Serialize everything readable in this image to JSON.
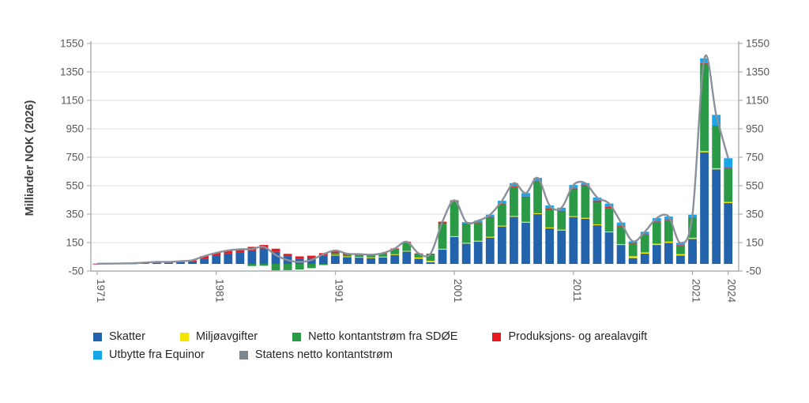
{
  "axis_title": "Milliarder NOK (2026)",
  "colors": {
    "skatter": "#2363ab",
    "miljoavgifter": "#f5e400",
    "sdoe": "#2b9a47",
    "produksjonsavgift": "#e81920",
    "equinor": "#18a6e8",
    "total_line": "#8a919b",
    "legend_line_swatch": "#7d868f",
    "grid": "#dcdcdc",
    "axis": "#9aa0a5",
    "tick_text": "#595959"
  },
  "legend": {
    "rows": [
      [
        {
          "id": "skatter",
          "label": "Skatter"
        },
        {
          "id": "miljoavgifter",
          "label": "Miljøavgifter"
        },
        {
          "id": "sdoe",
          "label": "Netto kontantstrøm fra SDØE"
        },
        {
          "id": "produksjonsavgift",
          "label": "Produksjons- og arealavgift"
        }
      ],
      [
        {
          "id": "equinor",
          "label": "Utbytte fra Equinor"
        },
        {
          "id": "total_line",
          "label": "Statens netto kontantstrøm"
        }
      ]
    ]
  },
  "chart_data": {
    "type": "bar",
    "subtype": "stacked-bar-with-line",
    "title": "",
    "xlabel": "",
    "ylabel": "Milliarder NOK (2026)",
    "ylim": [
      -50,
      1550
    ],
    "y_ticks": [
      -50,
      150,
      350,
      550,
      750,
      950,
      1150,
      1350,
      1550
    ],
    "x_tick_labels": [
      1971,
      1981,
      1991,
      2001,
      2011,
      2021,
      2024
    ],
    "grid": "horizontal",
    "legend_position": "bottom",
    "years": [
      1971,
      1972,
      1973,
      1974,
      1975,
      1976,
      1977,
      1978,
      1979,
      1980,
      1981,
      1982,
      1983,
      1984,
      1985,
      1986,
      1987,
      1988,
      1989,
      1990,
      1991,
      1992,
      1993,
      1994,
      1995,
      1996,
      1997,
      1998,
      1999,
      2000,
      2001,
      2002,
      2003,
      2004,
      2005,
      2006,
      2007,
      2008,
      2009,
      2010,
      2011,
      2012,
      2013,
      2014,
      2015,
      2016,
      2017,
      2018,
      2019,
      2020,
      2021,
      2022,
      2023,
      2024
    ],
    "series": [
      {
        "id": "skatter",
        "name": "Skatter",
        "values": [
          0.5,
          1,
          1.5,
          2.5,
          5,
          8,
          8,
          12,
          17,
          38,
          58,
          73,
          78,
          95,
          108,
          85,
          55,
          38,
          41,
          60,
          59,
          48,
          44,
          41,
          46,
          63,
          87,
          37,
          12,
          100,
          189,
          143,
          157,
          185,
          263,
          331,
          290,
          350,
          250,
          235,
          330,
          318,
          272,
          222,
          133,
          41,
          72,
          133,
          148,
          59,
          175,
          785,
          665,
          428
        ]
      },
      {
        "id": "miljoavgifter",
        "name": "Miljøavgifter",
        "values": [
          0,
          0,
          0,
          0,
          0,
          0,
          0,
          0,
          0,
          0,
          0,
          0,
          0,
          0,
          0,
          0,
          0,
          0,
          0,
          0,
          5,
          5,
          5,
          5,
          5,
          5,
          5,
          8,
          9,
          6,
          6,
          6,
          6,
          6,
          6,
          6,
          6,
          6,
          6,
          6,
          6,
          6,
          6,
          6,
          6,
          13,
          9,
          9,
          9,
          10,
          9,
          8,
          8,
          8
        ]
      },
      {
        "id": "sdoe",
        "name": "Netto kontantstrøm fra SDØE",
        "values": [
          0,
          0,
          0,
          0,
          0,
          0,
          0,
          0,
          0,
          0,
          0,
          0,
          0,
          -15,
          -13,
          -45,
          -44,
          -39,
          -30,
          -8,
          12,
          11,
          14,
          15,
          22,
          38,
          60,
          26,
          45,
          180,
          240,
          131,
          124,
          136,
          152,
          204,
          175,
          222,
          130,
          130,
          192,
          221,
          155,
          166,
          124,
          88,
          121,
          152,
          148,
          60,
          140,
          615,
          295,
          235
        ]
      },
      {
        "id": "produksjonsavgift",
        "name": "Produksjons- og arealavgift",
        "values": [
          1,
          1.5,
          2,
          2.5,
          4.5,
          6,
          6,
          7,
          9,
          17,
          20,
          22,
          25,
          25,
          25,
          22,
          16,
          15,
          17,
          16,
          18,
          8,
          6,
          4,
          3,
          3,
          4,
          3,
          6,
          11,
          8,
          4,
          4,
          3,
          3,
          3,
          3,
          3,
          3,
          3,
          3,
          8,
          9,
          8,
          6,
          5,
          6,
          4,
          4,
          3,
          3,
          4,
          4,
          4
        ]
      },
      {
        "id": "equinor",
        "name": "Utbytte fra Equinor",
        "values": [
          0,
          0,
          0,
          0,
          0,
          0,
          0,
          0,
          0,
          0,
          0,
          0,
          0,
          0,
          0,
          0,
          0,
          0,
          0,
          0,
          0,
          0,
          0,
          0,
          0,
          0,
          0,
          0,
          0,
          0,
          5,
          10,
          13,
          16,
          20,
          24,
          24,
          24,
          22,
          21,
          24,
          15,
          25,
          22,
          22,
          12,
          18,
          24,
          24,
          16,
          19,
          33,
          76,
          68
        ]
      }
    ],
    "line_series": {
      "id": "total_line",
      "name": "Statens netto kontantstrøm",
      "derived": "sum_of_series"
    }
  }
}
